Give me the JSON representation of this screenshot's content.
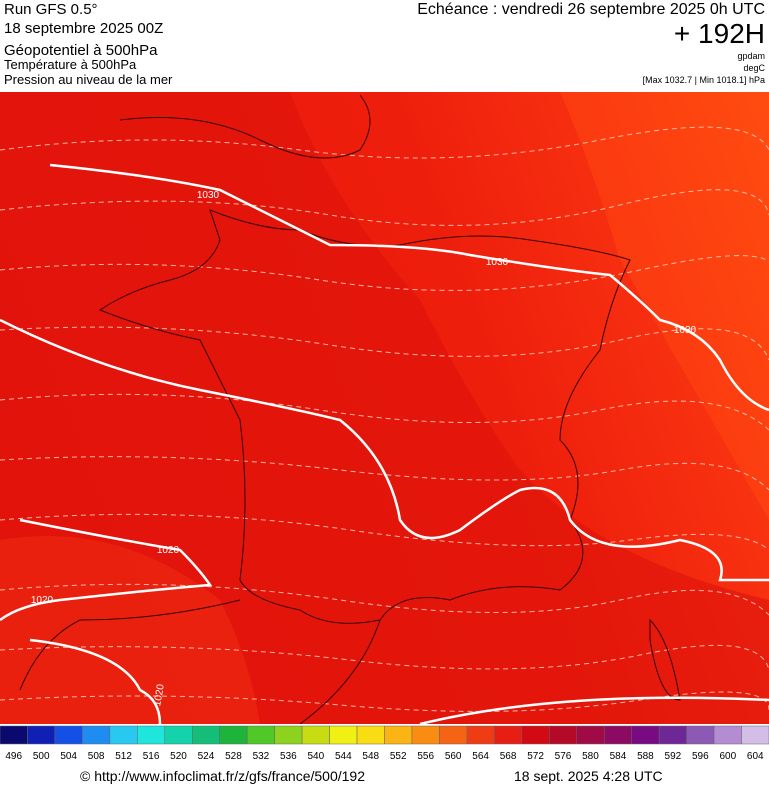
{
  "header": {
    "run": "Run GFS 0.5°",
    "date": "18 septembre 2025 00Z",
    "line1": "Géopotentiel à 500hPa",
    "line2": "Température à 500hPa",
    "line3": "Pression au niveau de la mer",
    "echeance": "Echéance : vendredi 26 septembre 2025 0h UTC",
    "horizon": "+ 192H",
    "unit1": "gpdam",
    "unit2": "degC",
    "range": "[Max 1032.7 | Min 1018.1] hPa"
  },
  "map": {
    "isobar_labels": [
      "1030",
      "1030",
      "1030",
      "1020",
      "1020",
      "1020"
    ]
  },
  "colorbar": {
    "labels": [
      496,
      500,
      504,
      508,
      512,
      516,
      520,
      524,
      528,
      532,
      536,
      540,
      544,
      548,
      552,
      556,
      560,
      564,
      568,
      572,
      576,
      580,
      584,
      588,
      592,
      596,
      600,
      604
    ],
    "colors": [
      "#0a0a6e",
      "#1020b4",
      "#1450e6",
      "#1e8cf0",
      "#28c8f0",
      "#1ee6dc",
      "#14d2aa",
      "#14be78",
      "#1eb43c",
      "#50c828",
      "#8cd21e",
      "#c8dc14",
      "#f0f014",
      "#fadc14",
      "#fab414",
      "#fa8c14",
      "#f56414",
      "#f03c14",
      "#e61e14",
      "#d20a14",
      "#b40a28",
      "#a00a46",
      "#8c0a64",
      "#780a82",
      "#6e2896",
      "#8c5ab4",
      "#b48cd2",
      "#d2bee6"
    ]
  },
  "footer": {
    "url": "© http://www.infoclimat.fr/z/gfs/france/500/192",
    "time": "18 sept. 2025  4:28 UTC"
  }
}
